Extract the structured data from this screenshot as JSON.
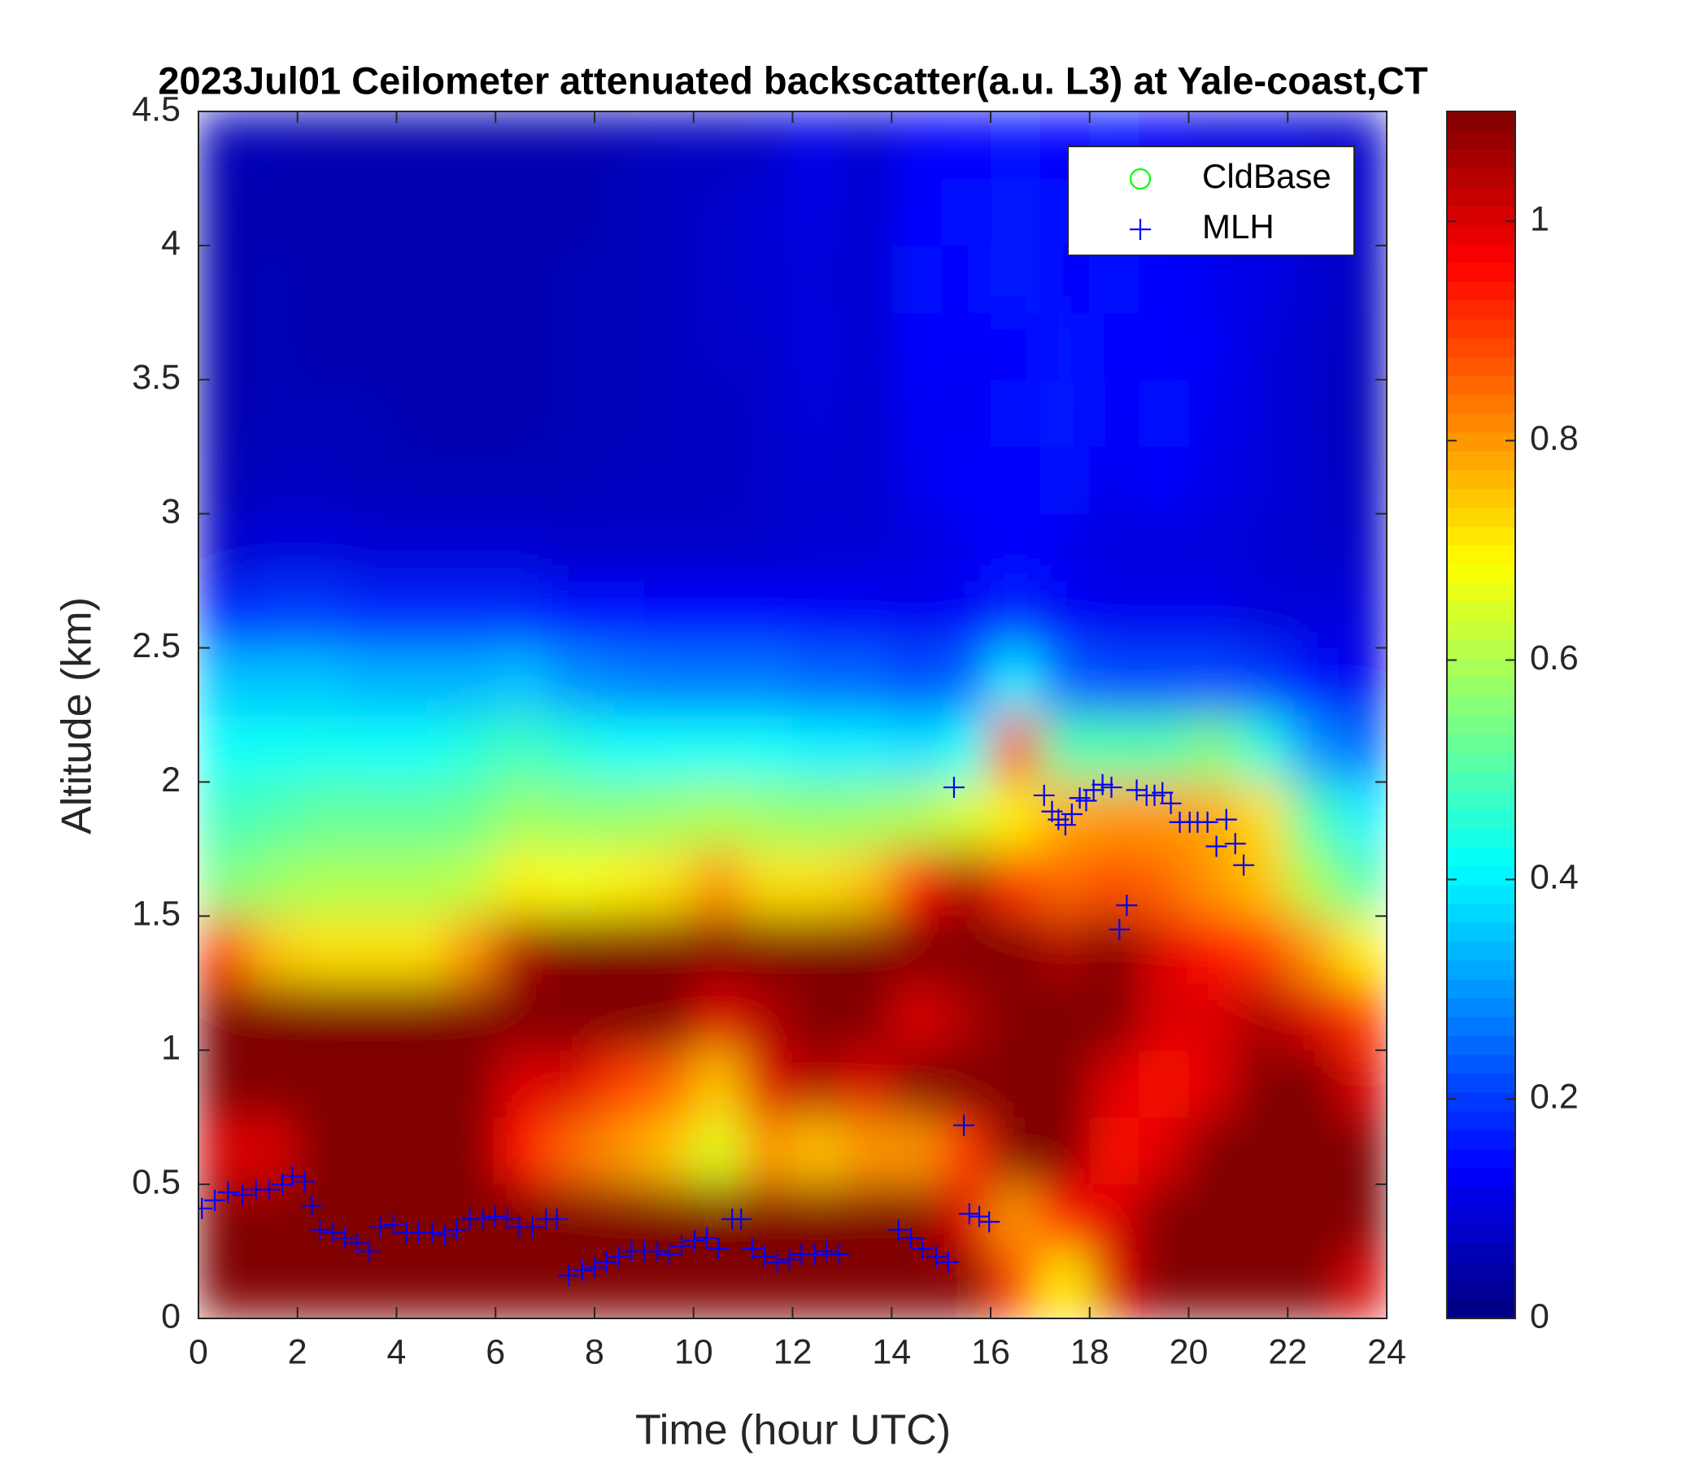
{
  "chart_data": {
    "type": "heatmap",
    "title": "2023Jul01 Ceilometer attenuated backscatter(a.u. L3) at Yale-coast,CT",
    "xlabel": "Time (hour UTC)",
    "ylabel": "Altitude (km)",
    "xlim": [
      0,
      24
    ],
    "xticks": [
      0,
      2,
      4,
      6,
      8,
      10,
      12,
      14,
      16,
      18,
      20,
      22,
      24
    ],
    "ylim": [
      0,
      4.5
    ],
    "yticks": [
      0,
      0.5,
      1,
      1.5,
      2,
      2.5,
      3,
      3.5,
      4,
      4.5
    ],
    "colormap": "jet",
    "clim": [
      0,
      1.1
    ],
    "cticks": [
      0,
      0.2,
      0.4,
      0.6,
      0.8,
      1
    ],
    "x": [
      0.5,
      1.5,
      2.5,
      3.5,
      4.5,
      5.5,
      6.5,
      7.5,
      8.5,
      9.5,
      10.5,
      11.5,
      12.5,
      13.5,
      14.5,
      15.5,
      16.5,
      17.5,
      18.5,
      19.5,
      20.5,
      21.5,
      22.5,
      23.5
    ],
    "y": [
      0.125,
      0.375,
      0.625,
      0.875,
      1.125,
      1.375,
      1.625,
      1.875,
      2.125,
      2.375,
      2.625,
      2.875,
      3.125,
      3.375,
      3.625,
      3.875,
      4.125,
      4.375
    ],
    "z": [
      [
        1.1,
        1.1,
        1.1,
        1.1,
        1.1,
        1.1,
        1.1,
        1.1,
        1.1,
        1.1,
        1.1,
        1.1,
        1.1,
        1.1,
        1.1,
        1.1,
        0.9,
        0.7,
        1.0,
        1.1,
        1.1,
        1.1,
        1.1,
        1.0
      ],
      [
        1.1,
        1.1,
        1.1,
        1.1,
        1.1,
        1.1,
        1.1,
        1.1,
        1.1,
        1.1,
        1.1,
        1.1,
        1.1,
        1.1,
        1.1,
        1.0,
        0.8,
        0.95,
        1.0,
        1.1,
        1.1,
        1.1,
        1.1,
        1.1
      ],
      [
        1.0,
        1.0,
        1.1,
        1.1,
        1.1,
        1.1,
        0.95,
        0.85,
        0.8,
        0.75,
        0.65,
        0.8,
        0.75,
        0.8,
        0.8,
        0.9,
        1.1,
        1.1,
        0.95,
        1.0,
        1.1,
        1.1,
        1.1,
        1.1
      ],
      [
        1.1,
        1.1,
        1.1,
        1.1,
        1.1,
        1.1,
        1.0,
        1.0,
        0.9,
        0.85,
        0.75,
        1.0,
        1.05,
        1.0,
        1.1,
        1.1,
        1.1,
        1.1,
        1.0,
        0.95,
        1.0,
        1.1,
        1.1,
        1.0
      ],
      [
        1.1,
        1.1,
        1.1,
        1.1,
        1.1,
        1.1,
        1.1,
        1.1,
        1.1,
        1.1,
        1.0,
        1.05,
        1.1,
        1.1,
        1.0,
        1.05,
        1.1,
        1.1,
        1.1,
        1.0,
        1.0,
        1.05,
        1.0,
        0.9
      ],
      [
        0.9,
        0.75,
        0.72,
        0.72,
        0.72,
        0.8,
        1.05,
        1.1,
        1.1,
        1.1,
        1.1,
        1.1,
        1.1,
        1.1,
        1.1,
        1.1,
        1.1,
        1.05,
        1.1,
        1.0,
        0.95,
        0.9,
        0.8,
        0.7
      ],
      [
        0.55,
        0.58,
        0.6,
        0.6,
        0.6,
        0.62,
        0.7,
        0.68,
        0.7,
        0.72,
        0.8,
        0.72,
        0.72,
        0.75,
        0.95,
        1.05,
        0.9,
        0.85,
        0.88,
        0.85,
        0.8,
        0.75,
        0.6,
        0.5
      ],
      [
        0.48,
        0.5,
        0.52,
        0.52,
        0.52,
        0.53,
        0.58,
        0.57,
        0.57,
        0.58,
        0.6,
        0.58,
        0.57,
        0.58,
        0.6,
        0.65,
        0.7,
        0.78,
        0.8,
        0.8,
        0.78,
        0.72,
        0.5,
        0.4
      ],
      [
        0.42,
        0.42,
        0.43,
        0.42,
        0.42,
        0.45,
        0.48,
        0.45,
        0.42,
        0.42,
        0.42,
        0.42,
        0.4,
        0.4,
        0.38,
        0.42,
        0.9,
        0.5,
        0.5,
        0.5,
        0.55,
        0.45,
        0.3,
        0.25
      ],
      [
        0.35,
        0.35,
        0.35,
        0.33,
        0.33,
        0.33,
        0.35,
        0.3,
        0.28,
        0.27,
        0.27,
        0.27,
        0.25,
        0.25,
        0.22,
        0.25,
        0.4,
        0.25,
        0.22,
        0.22,
        0.22,
        0.2,
        0.15,
        0.12
      ],
      [
        0.18,
        0.2,
        0.2,
        0.18,
        0.18,
        0.18,
        0.18,
        0.15,
        0.15,
        0.14,
        0.14,
        0.14,
        0.13,
        0.13,
        0.12,
        0.13,
        0.18,
        0.13,
        0.12,
        0.12,
        0.12,
        0.1,
        0.1,
        0.1
      ],
      [
        0.08,
        0.1,
        0.1,
        0.09,
        0.09,
        0.09,
        0.09,
        0.08,
        0.08,
        0.08,
        0.08,
        0.08,
        0.09,
        0.09,
        0.1,
        0.12,
        0.14,
        0.12,
        0.1,
        0.1,
        0.1,
        0.09,
        0.08,
        0.08
      ],
      [
        0.06,
        0.07,
        0.07,
        0.06,
        0.06,
        0.06,
        0.06,
        0.06,
        0.07,
        0.07,
        0.07,
        0.08,
        0.09,
        0.08,
        0.12,
        0.14,
        0.13,
        0.15,
        0.12,
        0.14,
        0.11,
        0.1,
        0.08,
        0.07
      ],
      [
        0.05,
        0.06,
        0.06,
        0.06,
        0.05,
        0.05,
        0.05,
        0.06,
        0.06,
        0.07,
        0.07,
        0.08,
        0.1,
        0.08,
        0.13,
        0.12,
        0.15,
        0.16,
        0.13,
        0.15,
        0.12,
        0.1,
        0.08,
        0.06
      ],
      [
        0.05,
        0.06,
        0.05,
        0.05,
        0.05,
        0.05,
        0.05,
        0.06,
        0.06,
        0.07,
        0.08,
        0.08,
        0.11,
        0.08,
        0.14,
        0.13,
        0.14,
        0.16,
        0.14,
        0.14,
        0.13,
        0.1,
        0.08,
        0.07
      ],
      [
        0.05,
        0.06,
        0.05,
        0.05,
        0.05,
        0.05,
        0.05,
        0.06,
        0.06,
        0.07,
        0.08,
        0.09,
        0.1,
        0.08,
        0.15,
        0.14,
        0.17,
        0.14,
        0.15,
        0.14,
        0.12,
        0.11,
        0.09,
        0.07
      ],
      [
        0.05,
        0.05,
        0.05,
        0.05,
        0.05,
        0.05,
        0.05,
        0.05,
        0.06,
        0.07,
        0.08,
        0.09,
        0.11,
        0.08,
        0.14,
        0.15,
        0.16,
        0.15,
        0.14,
        0.14,
        0.11,
        0.1,
        0.09,
        0.08
      ],
      [
        0.06,
        0.06,
        0.05,
        0.05,
        0.05,
        0.05,
        0.05,
        0.05,
        0.06,
        0.07,
        0.07,
        0.08,
        0.12,
        0.08,
        0.13,
        0.14,
        0.15,
        0.14,
        0.15,
        0.13,
        0.1,
        0.11,
        0.09,
        0.08
      ]
    ],
    "legend": "upper right",
    "series": [
      {
        "name": "CldBase",
        "color": "#00ff00",
        "marker": "circle",
        "x": [],
        "y": []
      },
      {
        "name": "MLH",
        "color": "#0000ff",
        "marker": "plus",
        "x": [
          0.07,
          0.33,
          0.6,
          0.89,
          1.16,
          1.43,
          1.69,
          1.9,
          2.14,
          2.29,
          2.45,
          2.72,
          2.96,
          3.21,
          3.45,
          3.67,
          3.94,
          4.2,
          4.45,
          4.72,
          4.97,
          5.21,
          5.48,
          5.75,
          5.99,
          6.24,
          6.48,
          6.75,
          7.02,
          7.24,
          7.48,
          7.75,
          8.0,
          8.24,
          8.49,
          8.75,
          9.0,
          9.27,
          9.51,
          9.76,
          10.02,
          10.27,
          10.51,
          10.78,
          10.96,
          11.18,
          11.43,
          11.69,
          11.94,
          12.18,
          12.45,
          12.69,
          12.94,
          14.14,
          14.39,
          14.63,
          14.9,
          15.14,
          15.26,
          15.46,
          15.57,
          15.77,
          15.97,
          17.08,
          17.24,
          17.37,
          17.51,
          17.64,
          17.8,
          17.93,
          18.08,
          18.26,
          18.44,
          18.6,
          18.75,
          18.95,
          19.15,
          19.31,
          19.47,
          19.64,
          19.82,
          20.02,
          20.18,
          20.38,
          20.56,
          20.76,
          20.94,
          21.11
        ],
        "y": [
          0.41,
          0.44,
          0.47,
          0.46,
          0.48,
          0.48,
          0.5,
          0.53,
          0.51,
          0.42,
          0.33,
          0.32,
          0.3,
          0.28,
          0.25,
          0.34,
          0.35,
          0.32,
          0.32,
          0.32,
          0.31,
          0.33,
          0.37,
          0.37,
          0.38,
          0.37,
          0.34,
          0.34,
          0.37,
          0.37,
          0.16,
          0.18,
          0.19,
          0.21,
          0.23,
          0.25,
          0.25,
          0.25,
          0.24,
          0.27,
          0.29,
          0.3,
          0.26,
          0.37,
          0.37,
          0.26,
          0.23,
          0.21,
          0.22,
          0.24,
          0.24,
          0.25,
          0.24,
          0.33,
          0.3,
          0.26,
          0.23,
          0.21,
          1.98,
          0.72,
          0.39,
          0.38,
          0.36,
          1.95,
          1.89,
          1.86,
          1.84,
          1.88,
          1.94,
          1.93,
          1.97,
          1.99,
          1.98,
          1.45,
          1.54,
          1.97,
          1.95,
          1.95,
          1.96,
          1.92,
          1.85,
          1.85,
          1.85,
          1.85,
          1.76,
          1.86,
          1.77,
          1.69
        ]
      }
    ]
  }
}
